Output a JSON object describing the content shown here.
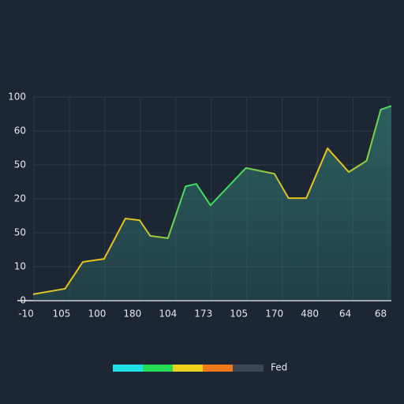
{
  "chart_data": {
    "type": "line",
    "x": [
      0.2,
      1.1,
      1.6,
      2.2,
      2.8,
      3.2,
      3.5,
      4.0,
      4.5,
      4.8,
      5.2,
      6.2,
      7.0,
      7.4,
      7.9,
      8.5,
      9.1,
      9.6,
      10.0,
      10.3
    ],
    "series": [
      {
        "name": "Fed",
        "color": "#e2c424",
        "values": [
          0.19,
          0.35,
          1.14,
          1.23,
          2.42,
          2.37,
          1.91,
          1.84,
          3.37,
          3.44,
          2.81,
          3.91,
          3.74,
          3.02,
          3.02,
          4.49,
          3.79,
          4.12,
          5.63,
          5.74
        ]
      }
    ],
    "line_colors": [
      "#d9c92a",
      "#e6c21f",
      "#e6c21f",
      "#3fdc62",
      "#3fdc62",
      "#e6c21f",
      "#e6c21f",
      "#3fdc62"
    ],
    "area_color": "#2f6a66",
    "xlim": [
      0.2,
      10.3
    ],
    "ylim": [
      0,
      6
    ],
    "xticks": [
      {
        "value": 0,
        "label": "-10"
      },
      {
        "value": 1,
        "label": "105"
      },
      {
        "value": 2,
        "label": "100"
      },
      {
        "value": 3,
        "label": "180"
      },
      {
        "value": 4,
        "label": "104"
      },
      {
        "value": 5,
        "label": "173"
      },
      {
        "value": 6,
        "label": "105"
      },
      {
        "value": 7,
        "label": "170"
      },
      {
        "value": 8,
        "label": "480"
      },
      {
        "value": 9,
        "label": "64"
      },
      {
        "value": 10,
        "label": "68"
      }
    ],
    "yticks": [
      {
        "value": 0,
        "label": "0"
      },
      {
        "value": 1,
        "label": "10"
      },
      {
        "value": 2,
        "label": "50"
      },
      {
        "value": 3,
        "label": "20"
      },
      {
        "value": 4,
        "label": "50"
      },
      {
        "value": 5,
        "label": "60"
      },
      {
        "value": 6,
        "label": "100"
      }
    ],
    "grid": true,
    "legend": {
      "position": "bottom",
      "colors": [
        "#1fe0e6",
        "#27dc55",
        "#f0d21c",
        "#f27a1a",
        "#3a4652"
      ]
    }
  }
}
